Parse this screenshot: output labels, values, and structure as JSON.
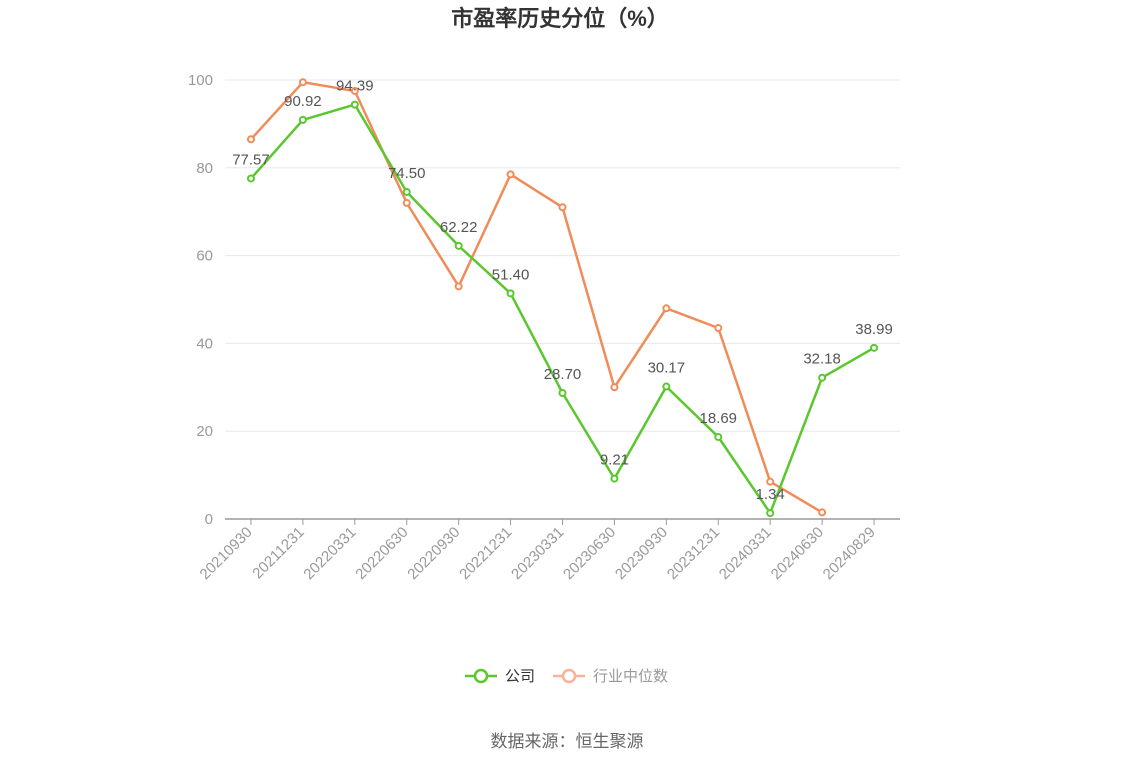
{
  "chart_data": {
    "type": "line",
    "title": "市盈率历史分位（%）",
    "categories": [
      "20210930",
      "20211231",
      "20220331",
      "20220630",
      "20220930",
      "20221231",
      "20230331",
      "20230630",
      "20230930",
      "20231231",
      "20240331",
      "20240630",
      "20240829"
    ],
    "series": [
      {
        "name": "公司",
        "color": "#5ac72e",
        "values": [
          77.57,
          90.92,
          94.39,
          74.5,
          62.22,
          51.4,
          28.7,
          9.21,
          30.17,
          18.69,
          1.34,
          32.18,
          38.99
        ],
        "labels": [
          "77.57",
          "90.92",
          "94.39",
          "74.50",
          "62.22",
          "51.40",
          "28.70",
          "9.21",
          "30.17",
          "18.69",
          "1.34",
          "32.18",
          "38.99"
        ]
      },
      {
        "name": "行业中位数",
        "color": "#f08c5a",
        "values": [
          86.5,
          99.5,
          97.5,
          72.0,
          53.0,
          78.5,
          71.0,
          30.0,
          48.0,
          43.5,
          8.5,
          1.5,
          null
        ]
      }
    ],
    "ylim": [
      0,
      100
    ],
    "yticks": [
      0,
      20,
      40,
      60,
      80,
      100
    ],
    "grid": true,
    "legend_position": "bottom"
  },
  "source_text": "数据来源：恒生聚源"
}
